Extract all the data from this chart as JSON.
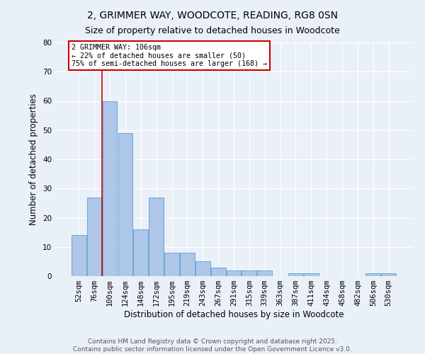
{
  "title": "2, GRIMMER WAY, WOODCOTE, READING, RG8 0SN",
  "subtitle": "Size of property relative to detached houses in Woodcote",
  "xlabel": "Distribution of detached houses by size in Woodcote",
  "ylabel": "Number of detached properties",
  "categories": [
    "52sqm",
    "76sqm",
    "100sqm",
    "124sqm",
    "148sqm",
    "172sqm",
    "195sqm",
    "219sqm",
    "243sqm",
    "267sqm",
    "291sqm",
    "315sqm",
    "339sqm",
    "363sqm",
    "387sqm",
    "411sqm",
    "434sqm",
    "458sqm",
    "482sqm",
    "506sqm",
    "530sqm"
  ],
  "values": [
    14,
    27,
    60,
    49,
    16,
    27,
    8,
    8,
    5,
    3,
    2,
    2,
    2,
    0,
    1,
    1,
    0,
    0,
    0,
    1,
    1
  ],
  "bar_color": "#aec6e8",
  "bar_edge_color": "#5a9fd4",
  "vline_color": "#cc0000",
  "ylim": [
    0,
    80
  ],
  "yticks": [
    0,
    10,
    20,
    30,
    40,
    50,
    60,
    70,
    80
  ],
  "annotation_title": "2 GRIMMER WAY: 106sqm",
  "annotation_line1": "← 22% of detached houses are smaller (50)",
  "annotation_line2": "75% of semi-detached houses are larger (168) →",
  "annotation_box_color": "#ffffff",
  "annotation_box_edge": "#cc0000",
  "footer1": "Contains HM Land Registry data © Crown copyright and database right 2025.",
  "footer2": "Contains public sector information licensed under the Open Government Licence v3.0.",
  "bg_color": "#eaf0f8",
  "plot_bg_color": "#eaf0f8",
  "title_fontsize": 10,
  "subtitle_fontsize": 9,
  "tick_fontsize": 7.5,
  "label_fontsize": 8.5,
  "footer_fontsize": 6.5
}
